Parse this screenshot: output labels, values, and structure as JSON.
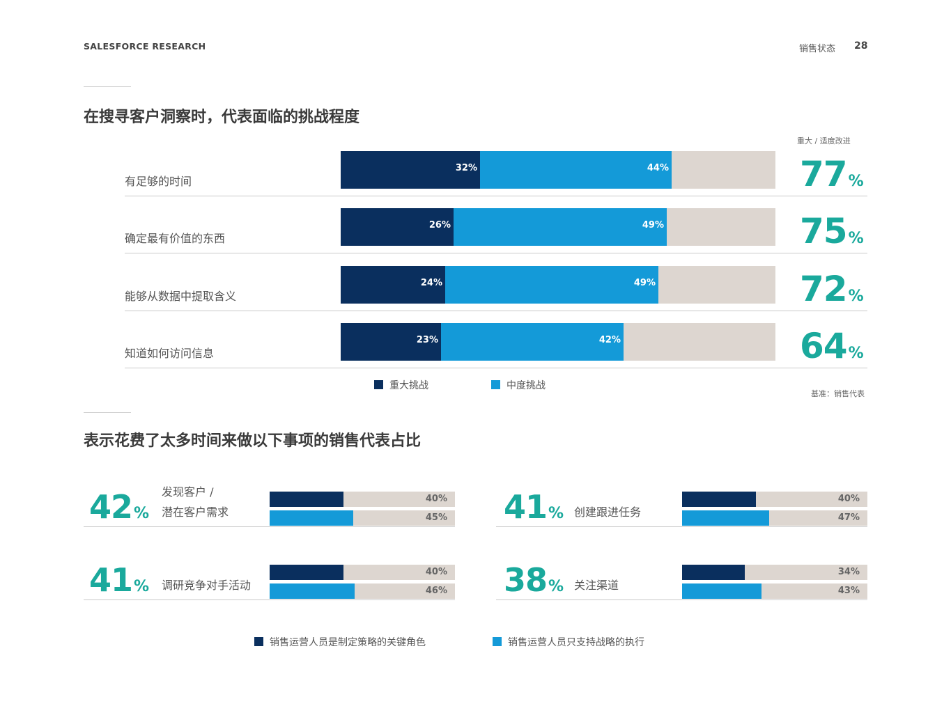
{
  "header": {
    "left": "SALESFORCE RESEARCH",
    "title": "销售状态",
    "page": "28"
  },
  "colors": {
    "navy": "#0a2f5e",
    "blue": "#149ad8",
    "gray": "#ddd6d0",
    "teal": "#1aa99c"
  },
  "chart_data": [
    {
      "type": "bar",
      "stacked": true,
      "orientation": "horizontal",
      "title": "在搜寻客户洞察时，代表面临的挑战程度",
      "column_note": "重大 / 适度改进",
      "categories": [
        "有足够的时间",
        "确定最有价值的东西",
        "能够从数据中提取含义",
        "知道如何访问信息"
      ],
      "series": [
        {
          "name": "重大挑战",
          "values": [
            32,
            26,
            24,
            23
          ],
          "labels": [
            "32%",
            "26%",
            "24%",
            "23%"
          ]
        },
        {
          "name": "中度挑战",
          "values": [
            44,
            49,
            49,
            42
          ],
          "labels": [
            "44%",
            "49%",
            "49%",
            "42%"
          ]
        }
      ],
      "totals": [
        "77",
        "75",
        "72",
        "64"
      ],
      "xlim": [
        0,
        100
      ],
      "note": "基准：销售代表"
    },
    {
      "type": "bar",
      "orientation": "horizontal",
      "title": "表示花费了太多时间来做以下事项的销售代表占比",
      "items": [
        {
          "total": "42",
          "label_lines": [
            "发现客户 /",
            "潜在客户需求"
          ],
          "values": [
            40,
            45
          ],
          "labels": [
            "40%",
            "45%"
          ]
        },
        {
          "total": "41",
          "label_lines": [
            "创建跟进任务"
          ],
          "values": [
            40,
            47
          ],
          "labels": [
            "40%",
            "47%"
          ]
        },
        {
          "total": "41",
          "label_lines": [
            "调研竞争对手活动"
          ],
          "values": [
            40,
            46
          ],
          "labels": [
            "40%",
            "46%"
          ]
        },
        {
          "total": "38",
          "label_lines": [
            "关注渠道"
          ],
          "values": [
            34,
            43
          ],
          "labels": [
            "34%",
            "43%"
          ]
        }
      ],
      "series": [
        {
          "name": "销售运营人员是制定策略的关键角色"
        },
        {
          "name": "销售运营人员只支持战略的执行"
        }
      ],
      "xlim": [
        0,
        100
      ]
    }
  ],
  "pct_sign": "%"
}
